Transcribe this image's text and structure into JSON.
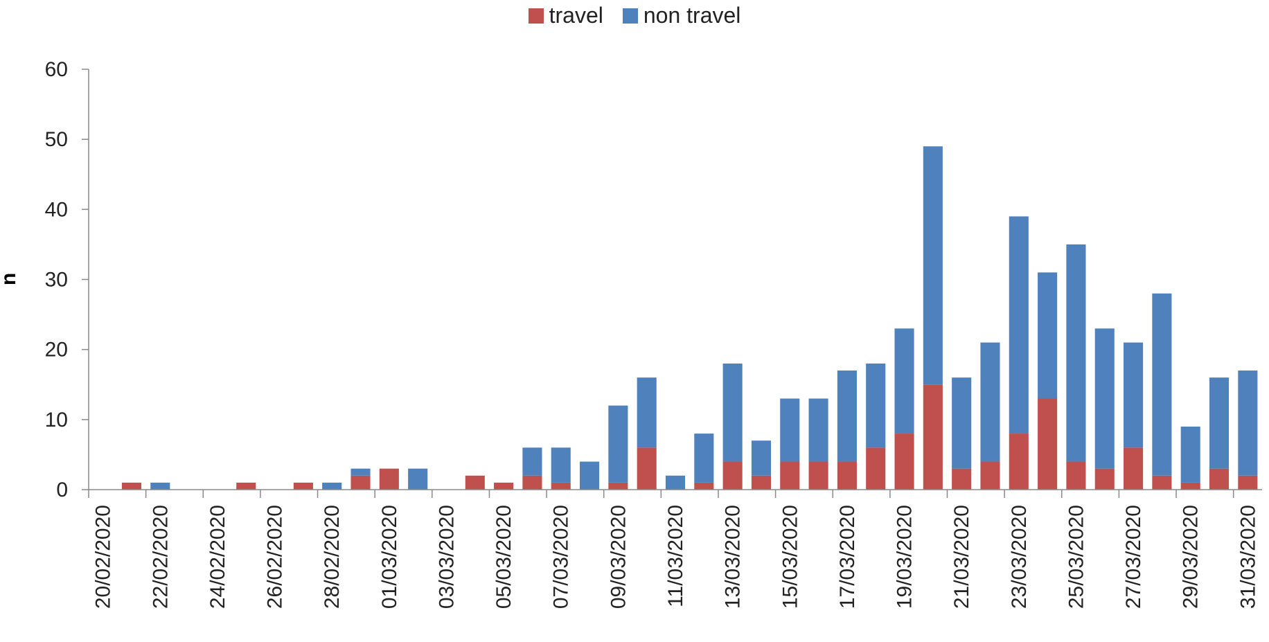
{
  "chart_data": {
    "type": "bar",
    "stacked": true,
    "ylabel": "n",
    "xlabel": "",
    "ylim": [
      0,
      60
    ],
    "y_ticks": [
      0,
      10,
      20,
      30,
      40,
      50,
      60
    ],
    "legend_position": "top-center",
    "grid": false,
    "categories": [
      "20/02/2020",
      "21/02/2020",
      "22/02/2020",
      "23/02/2020",
      "24/02/2020",
      "25/02/2020",
      "26/02/2020",
      "27/02/2020",
      "28/02/2020",
      "29/02/2020",
      "01/03/2020",
      "02/03/2020",
      "03/03/2020",
      "04/03/2020",
      "05/03/2020",
      "06/03/2020",
      "07/03/2020",
      "08/03/2020",
      "09/03/2020",
      "10/03/2020",
      "11/03/2020",
      "12/03/2020",
      "13/03/2020",
      "14/03/2020",
      "15/03/2020",
      "16/03/2020",
      "17/03/2020",
      "18/03/2020",
      "19/03/2020",
      "20/03/2020",
      "21/03/2020",
      "22/03/2020",
      "23/03/2020",
      "24/03/2020",
      "25/03/2020",
      "26/03/2020",
      "27/03/2020",
      "28/03/2020",
      "29/03/2020",
      "30/03/2020",
      "31/03/2020"
    ],
    "tick_labels": [
      "20/02/2020",
      "22/02/2020",
      "24/02/2020",
      "26/02/2020",
      "28/02/2020",
      "01/03/2020",
      "03/03/2020",
      "05/03/2020",
      "07/03/2020",
      "09/03/2020",
      "11/03/2020",
      "13/03/2020",
      "15/03/2020",
      "17/03/2020",
      "19/03/2020",
      "21/03/2020",
      "23/03/2020",
      "25/03/2020",
      "27/03/2020",
      "29/03/2020",
      "31/03/2020"
    ],
    "series": [
      {
        "name": "travel",
        "color": "#C0504D",
        "values": [
          0,
          1,
          0,
          0,
          0,
          1,
          0,
          1,
          0,
          2,
          3,
          0,
          0,
          2,
          1,
          2,
          1,
          0,
          1,
          6,
          0,
          1,
          4,
          2,
          4,
          4,
          4,
          6,
          8,
          15,
          3,
          4,
          8,
          13,
          4,
          3,
          6,
          2,
          1,
          3,
          2
        ]
      },
      {
        "name": "non travel",
        "color": "#4F81BD",
        "values": [
          0,
          0,
          1,
          0,
          0,
          0,
          0,
          0,
          1,
          1,
          0,
          3,
          0,
          0,
          0,
          4,
          5,
          4,
          11,
          10,
          2,
          7,
          14,
          5,
          9,
          9,
          13,
          12,
          15,
          34,
          13,
          17,
          31,
          18,
          31,
          20,
          15,
          26,
          8,
          13,
          15
        ]
      }
    ]
  }
}
